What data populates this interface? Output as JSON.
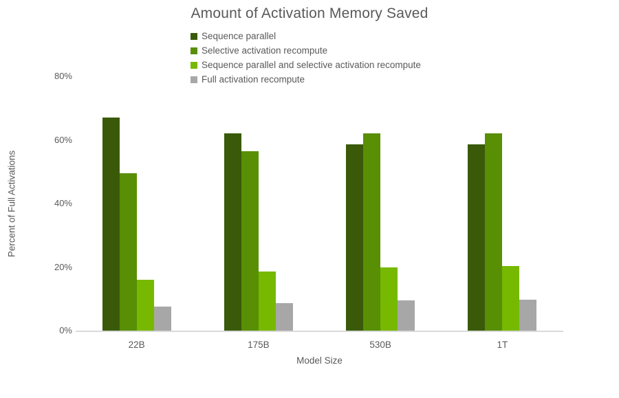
{
  "title": "Amount of Activation Memory Saved",
  "colors": {
    "text": "#595959",
    "axis_line": "#d9d9d9",
    "series": [
      "#3a5a0a",
      "#588f04",
      "#76b900",
      "#a7a7a7"
    ]
  },
  "legend": {
    "items": [
      {
        "label": "Sequence parallel",
        "color": "#3a5a0a"
      },
      {
        "label": "Selective activation recompute",
        "color": "#588f04"
      },
      {
        "label": "Sequence parallel and selective activation recompute",
        "color": "#76b900"
      },
      {
        "label": "Full activation recompute",
        "color": "#a7a7a7"
      }
    ]
  },
  "y_axis": {
    "title": "Percent of Full Activations",
    "ticks": [
      "0%",
      "20%",
      "40%",
      "60%",
      "80%"
    ],
    "tick_values": [
      0,
      20,
      40,
      60,
      80
    ]
  },
  "x_axis": {
    "title": "Model Size",
    "categories": [
      "22B",
      "175B",
      "530B",
      "1T"
    ]
  },
  "chart_data": {
    "type": "bar",
    "title": "Amount of Activation Memory Saved",
    "xlabel": "Model Size",
    "ylabel": "Percent of Full Activations",
    "categories": [
      "22B",
      "175B",
      "530B",
      "1T"
    ],
    "series": [
      {
        "name": "Sequence parallel",
        "color": "#3a5a0a",
        "values": [
          67,
          62,
          58.5,
          58.5
        ]
      },
      {
        "name": "Selective activation recompute",
        "color": "#588f04",
        "values": [
          49.5,
          56.5,
          62,
          62
        ]
      },
      {
        "name": "Sequence parallel and selective activation recompute",
        "color": "#76b900",
        "values": [
          16,
          18.5,
          20,
          20.3
        ]
      },
      {
        "name": "Full activation recompute",
        "color": "#a7a7a7",
        "values": [
          7.5,
          8.7,
          9.5,
          9.7
        ]
      }
    ],
    "ylim": [
      0,
      80
    ],
    "ytick_labels": [
      "0%",
      "20%",
      "40%",
      "60%",
      "80%"
    ],
    "grid": false,
    "legend_position": "top"
  }
}
